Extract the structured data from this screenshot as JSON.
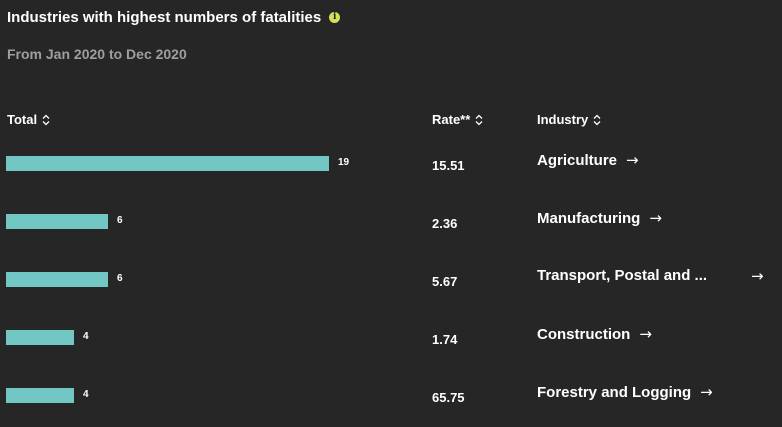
{
  "title": "Industries with highest numbers of fatalities",
  "info_icon": "info-icon",
  "subtitle": "From Jan 2020 to Dec 2020",
  "headers": {
    "total": "Total",
    "rate": "Rate**",
    "industry": "Industry"
  },
  "colors": {
    "bar": "#72c7c5",
    "background": "#262626",
    "info": "#d4e157"
  },
  "chart_data": {
    "type": "bar",
    "categories": [
      "Agriculture",
      "Manufacturing",
      "Transport, Postal and ...",
      "Construction",
      "Forestry and Logging"
    ],
    "values": [
      19,
      6,
      6,
      4,
      4
    ],
    "rates": [
      "15.51",
      "2.36",
      "5.67",
      "1.74",
      "65.75"
    ],
    "xlim": [
      0,
      19
    ]
  },
  "rows": [
    {
      "total": "19",
      "rate": "15.51",
      "industry": "Agriculture"
    },
    {
      "total": "6",
      "rate": "2.36",
      "industry": "Manufacturing"
    },
    {
      "total": "6",
      "rate": "5.67",
      "industry": "Transport, Postal and ..."
    },
    {
      "total": "4",
      "rate": "1.74",
      "industry": "Construction"
    },
    {
      "total": "4",
      "rate": "65.75",
      "industry": "Forestry and Logging"
    }
  ],
  "arrow_glyph": "→"
}
